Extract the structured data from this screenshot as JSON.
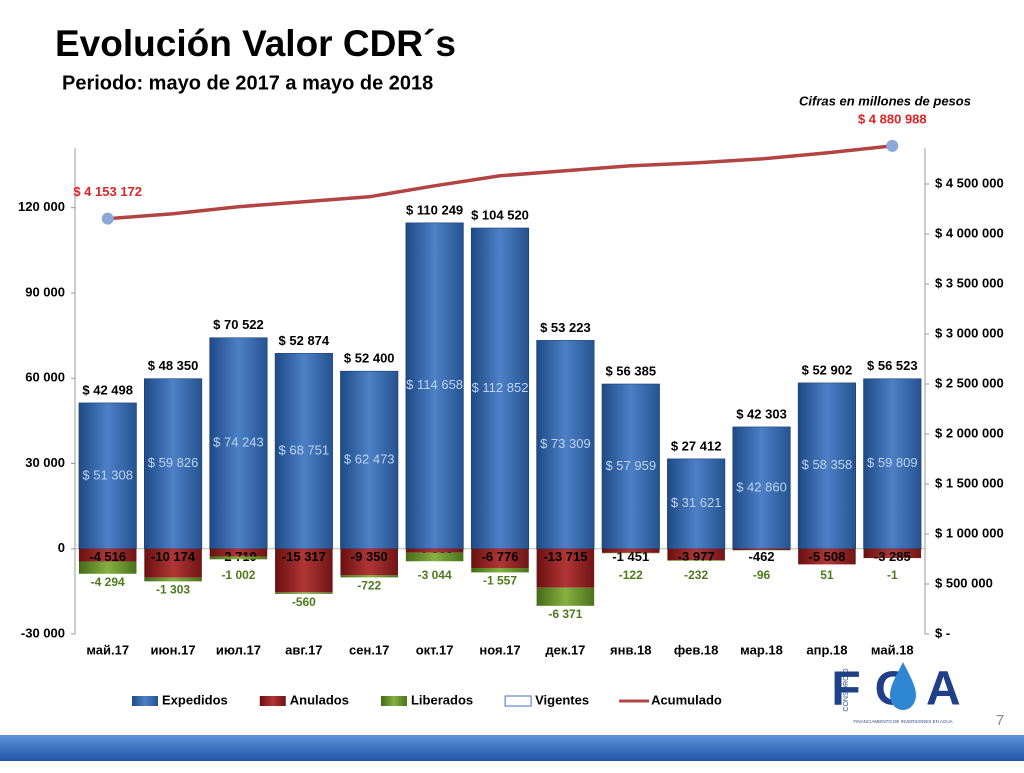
{
  "header": {
    "title": "Evolución Valor CDR´s",
    "subtitle": "Periodo:  mayo de 2017 a mayo de 2018",
    "note": "Cifras en millones de pesos"
  },
  "chart_data": {
    "type": "bar",
    "stacked": true,
    "categories": [
      "май.17",
      "июн.17",
      "июл.17",
      "авг.17",
      "сен.17",
      "окт.17",
      "ноя.17",
      "дек.17",
      "янв.18",
      "фев.18",
      "мар.18",
      "апр.18",
      "май.18"
    ],
    "series": [
      {
        "name": "Expedidos",
        "color": "#2f5f9f",
        "values": [
          51308,
          59826,
          74243,
          68751,
          62473,
          114658,
          112852,
          73309,
          57959,
          31621,
          42860,
          58358,
          59809
        ],
        "value_labels": [
          "$ 51 308",
          "$ 59 826",
          "$ 74 243",
          "$ 68 751",
          "$ 62 473",
          "$ 114 658",
          "$ 112 852",
          "$ 73 309",
          "$ 57 959",
          "$ 31 621",
          "$ 42 860",
          "$ 58 358",
          "$ 59 809"
        ]
      },
      {
        "name": "Anulados",
        "color": "#8e1c1c",
        "values": [
          -4516,
          -10174,
          -2719,
          -15317,
          -9350,
          -1366,
          -6776,
          -13715,
          -1451,
          -3977,
          -462,
          -5508,
          -3285
        ],
        "value_labels": [
          "-4 516",
          "-10 174",
          "-2 719",
          "-15 317",
          "-9 350",
          "-1 366",
          "-6 776",
          "-13 715",
          "-1 451",
          "-3 977",
          "-462",
          "-5 508",
          "-3 285"
        ]
      },
      {
        "name": "Liberados",
        "color": "#5f8a2a",
        "values": [
          -4294,
          -1303,
          -1002,
          -560,
          -722,
          -3044,
          -1557,
          -6371,
          -122,
          -232,
          -96,
          51,
          -1
        ],
        "value_labels": [
          "-4 294",
          "-1 303",
          "-1 002",
          "-560",
          "-722",
          "-3 044",
          "-1 557",
          "-6 371",
          "-122",
          "-232",
          "-96",
          "51",
          "-1"
        ]
      },
      {
        "name": "Vigentes",
        "color": "#ffffff",
        "stacked": false,
        "values": [
          42498,
          48350,
          70522,
          52874,
          52400,
          110249,
          104520,
          53223,
          56385,
          27412,
          42303,
          52902,
          56523
        ],
        "value_labels": [
          "$ 42 498",
          "$ 48 350",
          "$ 70 522",
          "$ 52 874",
          "$ 52 400",
          "$ 110 249",
          "$ 104 520",
          "$ 53 223",
          "$ 56 385",
          "$ 27 412",
          "$ 42 303",
          "$ 52 902",
          "$ 56 523"
        ]
      },
      {
        "name": "Acumulado",
        "type": "line",
        "axis": "y2",
        "color": "#b24444",
        "values": [
          4153172,
          4203000,
          4273000,
          4323000,
          4372000,
          4482000,
          4582000,
          4632000,
          4682000,
          4711000,
          4751000,
          4811000,
          4880988
        ],
        "value_labels": [
          "$ 4 153 172",
          null,
          null,
          null,
          null,
          null,
          null,
          null,
          null,
          null,
          null,
          null,
          "$ 4 880 988"
        ]
      }
    ],
    "ylim": [
      -30000,
      141000
    ],
    "yticks": [
      {
        "value": -30000,
        "label": "-30 000"
      },
      0,
      {
        "value": 30000,
        "label": "30 000"
      },
      {
        "value": 60000,
        "label": "60 000"
      },
      {
        "value": 90000,
        "label": "90 000"
      },
      {
        "value": 120000,
        "label": "120 000"
      }
    ],
    "y2lim": [
      0,
      4860000
    ],
    "y2ticks": [
      {
        "value": 0,
        "label": "$ -"
      },
      {
        "value": 500000,
        "label": "$ 500 000"
      },
      {
        "value": 1000000,
        "label": "$ 1 000 000"
      },
      {
        "value": 1500000,
        "label": "$ 1 500 000"
      },
      {
        "value": 2000000,
        "label": "$ 2 000 000"
      },
      {
        "value": 2500000,
        "label": "$ 2 500 000"
      },
      {
        "value": 3000000,
        "label": "$ 3 000 000"
      },
      {
        "value": 3500000,
        "label": "$ 3 500 000"
      },
      {
        "value": 4000000,
        "label": "$ 4 000 000"
      },
      {
        "value": 4500000,
        "label": "$ 4 500 000"
      }
    ],
    "grid": false,
    "legend": "bottom"
  },
  "logo": {
    "name": "FOA",
    "vertical": "CONSORCIO",
    "tagline": "FINANCIAMIENTO DE INVERSIONES EN AGUA"
  },
  "page_number": "7"
}
